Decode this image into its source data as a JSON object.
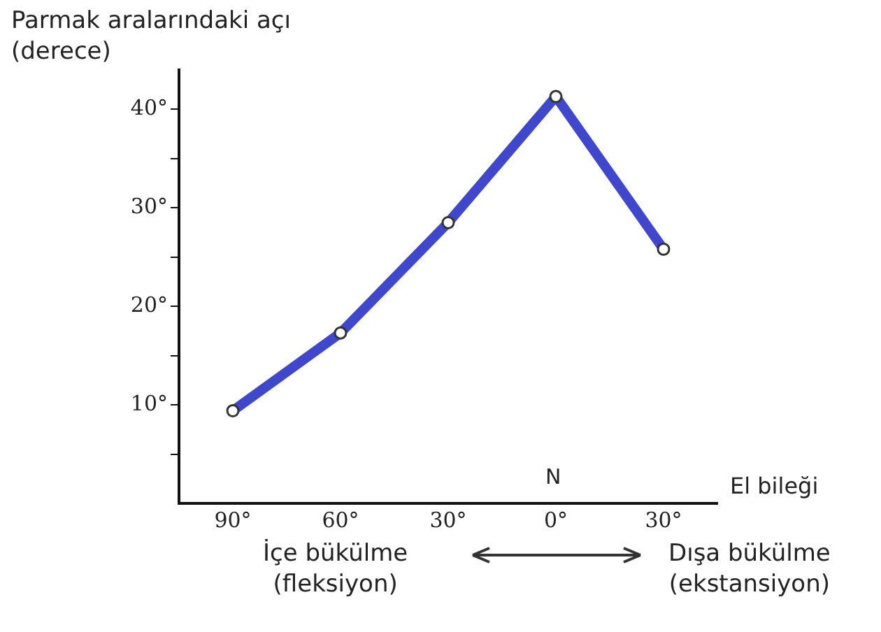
{
  "chart_data": {
    "type": "line",
    "ylabel": "Parmak aralarındaki açı\n(derece)",
    "xlabel": "El bileği",
    "categories": [
      "90°",
      "60°",
      "30°",
      "0°",
      "30°"
    ],
    "series": [
      {
        "color": "#3f48cc",
        "values": [
          9.4,
          17.3,
          28.5,
          41.3,
          25.8
        ]
      }
    ],
    "ylim": [
      0,
      44
    ],
    "yticks": [
      {
        "value": 5,
        "label": null
      },
      {
        "value": 10,
        "label": "10°"
      },
      {
        "value": 15,
        "label": null
      },
      {
        "value": 20,
        "label": "20°"
      },
      {
        "value": 25,
        "label": null
      },
      {
        "value": 30,
        "label": "30°"
      },
      {
        "value": 35,
        "label": null
      },
      {
        "value": 40,
        "label": "40°"
      }
    ],
    "annotations": [
      "N",
      "İçe bükülme\n(fleksiyon)",
      "Dışa bükülme\n(ekstansiyon)"
    ],
    "grid": false,
    "legend": false,
    "marker": "circle",
    "line_style": "solid"
  }
}
